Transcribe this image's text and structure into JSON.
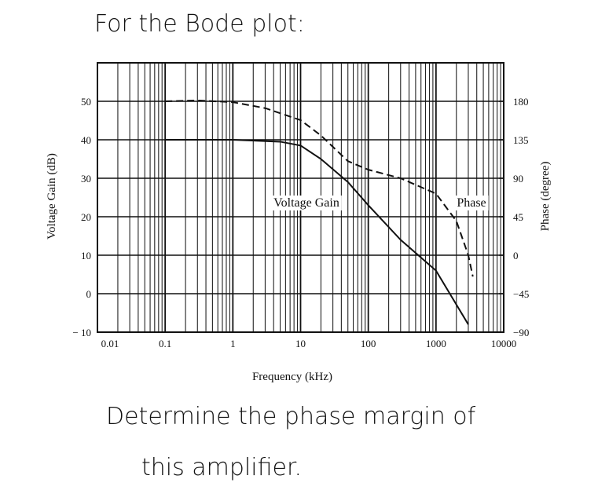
{
  "header": "For the Bode plot:",
  "footer_lines": [
    "Determine the phase margin of",
    "this amplifier."
  ],
  "chart_data": {
    "type": "line",
    "xlabel": "Frequency (kHz)",
    "ylabel": "Voltage Gain (dB)",
    "y2label": "Phase (degree)",
    "xscale": "log",
    "xlim": [
      0.01,
      10000
    ],
    "xticks": [
      0.01,
      0.1,
      1,
      10,
      100,
      1000,
      10000
    ],
    "ylim": [
      -10,
      60
    ],
    "yticks": [
      {
        "value": -10,
        "label": "− 10"
      },
      0,
      10,
      20,
      30,
      40,
      50
    ],
    "y2lim": [
      -90,
      225
    ],
    "y2ticks": [
      {
        "value": -90,
        "label": "−90"
      },
      {
        "value": -45,
        "label": "−45"
      },
      0,
      45,
      90,
      135,
      180
    ],
    "grid": true,
    "series": [
      {
        "name": "Voltage Gain",
        "color": "#111111",
        "style": "solid",
        "x": [
          0.1,
          1,
          5,
          10,
          20,
          50,
          100,
          300,
          1000,
          3000
        ],
        "values": [
          40,
          40,
          39.5,
          38.5,
          35,
          29,
          23,
          14,
          6,
          -8
        ]
      },
      {
        "name": "Phase",
        "color": "#111111",
        "style": "dashed",
        "axis": "y2",
        "x": [
          0.1,
          0.3,
          1,
          3,
          10,
          20,
          50,
          100,
          300,
          1000,
          2000,
          3000,
          3500
        ],
        "values": [
          180,
          181,
          179,
          172,
          158,
          140,
          110,
          100,
          90,
          72,
          40,
          0,
          -25
        ]
      }
    ]
  }
}
